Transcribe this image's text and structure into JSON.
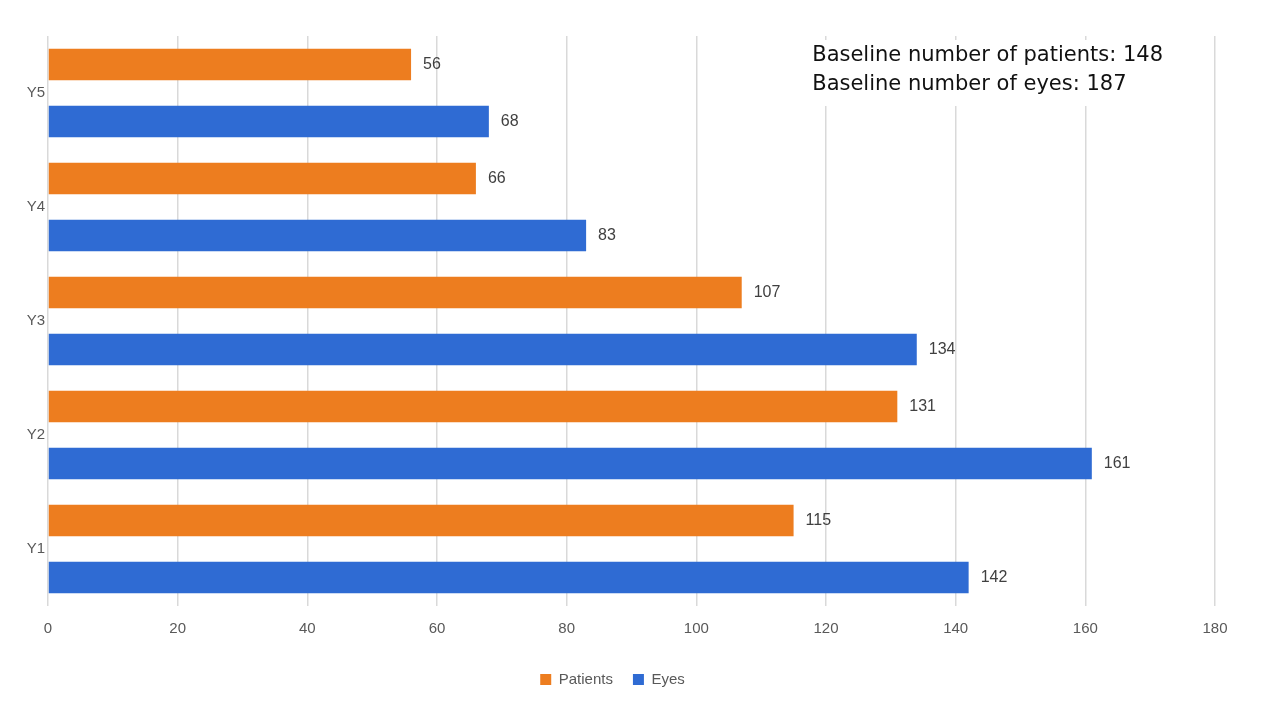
{
  "chart_data": {
    "type": "bar",
    "orientation": "horizontal",
    "categories": [
      "Y5",
      "Y4",
      "Y3",
      "Y2",
      "Y1"
    ],
    "series": [
      {
        "name": "Patients",
        "color": "#ed7d1f",
        "values": [
          56,
          66,
          107,
          131,
          115
        ]
      },
      {
        "name": "Eyes",
        "color": "#2f6bd3",
        "values": [
          68,
          83,
          134,
          161,
          142
        ]
      }
    ],
    "xlim": [
      0,
      180
    ],
    "xticks": [
      0,
      20,
      40,
      60,
      80,
      100,
      120,
      140,
      160,
      180
    ],
    "grid": "x",
    "legend": "bottom",
    "data_labels": true,
    "annotations": [
      "Baseline number of patients: 148",
      "Baseline number of eyes: 187"
    ]
  }
}
